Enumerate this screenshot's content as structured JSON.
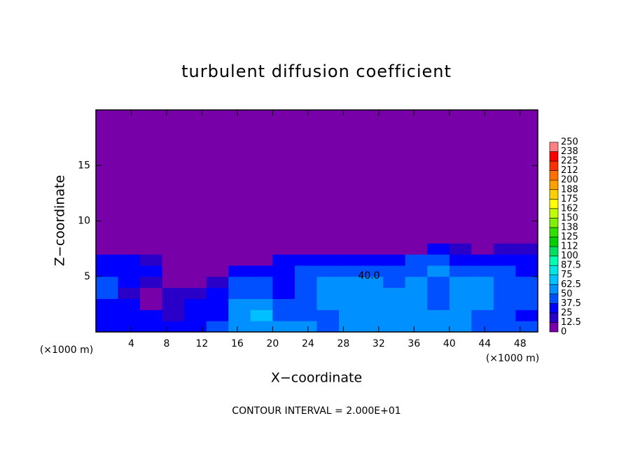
{
  "chart_data": {
    "type": "contour",
    "title": "turbulent diffusion coefficient",
    "x_label": "X−coordinate",
    "y_label": "Z−coordinate",
    "x_units": "(×1000 m)",
    "footnote": "CONTOUR INTERVAL = 2.000E+01",
    "annotations": [
      "40.0"
    ],
    "xlim": [
      0,
      50
    ],
    "ylim": [
      0,
      20
    ],
    "xticks": [
      4,
      8,
      12,
      16,
      20,
      24,
      28,
      32,
      36,
      40,
      44,
      48
    ],
    "yticks": [
      5,
      10,
      15
    ],
    "x_edges": [
      0,
      2.5,
      5,
      7.5,
      10,
      12.5,
      15,
      17.5,
      20,
      22.5,
      25,
      27.5,
      30,
      32.5,
      35,
      37.5,
      40,
      42.5,
      45,
      47.5,
      50
    ],
    "z_edges": [
      0,
      1,
      2,
      3,
      4,
      5,
      6,
      7,
      8,
      20
    ],
    "values": [
      [
        30,
        35,
        30,
        30,
        35,
        40,
        50,
        60,
        55,
        50,
        45,
        50,
        55,
        50,
        60,
        55,
        50,
        45,
        40,
        40
      ],
      [
        30,
        30,
        25,
        20,
        30,
        35,
        60,
        65,
        45,
        40,
        45,
        55,
        60,
        60,
        55,
        50,
        55,
        45,
        40,
        35
      ],
      [
        35,
        25,
        10,
        20,
        30,
        30,
        55,
        50,
        40,
        40,
        50,
        55,
        60,
        55,
        55,
        45,
        55,
        50,
        40,
        40
      ],
      [
        40,
        20,
        10,
        15,
        15,
        25,
        45,
        40,
        35,
        40,
        55,
        60,
        55,
        50,
        50,
        45,
        50,
        55,
        45,
        40
      ],
      [
        40,
        30,
        20,
        10,
        5,
        20,
        45,
        40,
        35,
        40,
        50,
        55,
        50,
        45,
        55,
        45,
        50,
        50,
        45,
        40
      ],
      [
        35,
        30,
        25,
        10,
        5,
        5,
        25,
        30,
        35,
        40,
        45,
        45,
        45,
        40,
        45,
        50,
        45,
        40,
        40,
        35
      ],
      [
        30,
        30,
        20,
        5,
        5,
        5,
        5,
        10,
        25,
        30,
        35,
        30,
        30,
        35,
        40,
        40,
        35,
        35,
        35,
        30
      ],
      [
        5,
        5,
        5,
        5,
        5,
        5,
        5,
        5,
        5,
        5,
        5,
        5,
        5,
        5,
        10,
        25,
        20,
        10,
        15,
        20
      ],
      [
        5,
        5,
        5,
        5,
        5,
        5,
        5,
        5,
        5,
        5,
        5,
        5,
        5,
        5,
        5,
        5,
        5,
        5,
        5,
        5
      ]
    ],
    "levels": [
      0,
      12.5,
      25,
      37.5,
      50,
      62.5,
      75,
      87.5,
      100,
      112,
      125,
      138,
      150,
      162,
      175,
      188,
      200,
      212,
      225,
      238,
      250
    ],
    "colors": [
      "#7800a8",
      "#2a00c8",
      "#0000ff",
      "#0050ff",
      "#0090ff",
      "#00c0ff",
      "#00e6e6",
      "#00ffb0",
      "#00e060",
      "#00d000",
      "#30e000",
      "#80f000",
      "#c0ff00",
      "#ffff00",
      "#ffd000",
      "#ffa000",
      "#ff7000",
      "#ff3000",
      "#ff0000",
      "#ff8080"
    ]
  }
}
